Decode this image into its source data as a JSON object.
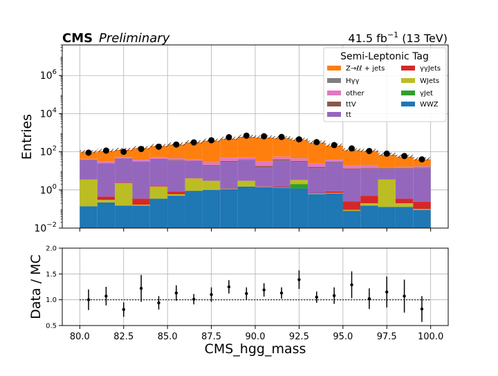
{
  "header": {
    "experiment": "CMS",
    "status": "Preliminary",
    "lumi_value": "41.5 fb",
    "lumi_exp": "−1",
    "lumi_energy": "(13 TeV)"
  },
  "colors": {
    "Zjets": "#ff7f0e",
    "Hgg": "#7f7f7f",
    "other": "#e377c2",
    "ttV": "#8c564b",
    "tt": "#9467bd",
    "ggJets": "#d62728",
    "WJets": "#bcbd22",
    "gJet": "#2ca02c",
    "WWZ": "#1f77b4"
  },
  "chart_data": [
    {
      "type": "bar",
      "stacked": true,
      "ylabel": "Entries",
      "yscale": "log",
      "ylim": [
        0.01,
        40000000
      ],
      "xlim": [
        79,
        101
      ],
      "grid": true,
      "legend": {
        "title": "Semi-Leptonic Tag",
        "placement": "top-right",
        "entries": [
          {
            "key": "Zjets",
            "label": "Z→ℓℓ + jets"
          },
          {
            "key": "ggJets",
            "label": "γγJets"
          },
          {
            "key": "Hgg",
            "label": "Hγγ"
          },
          {
            "key": "WJets",
            "label": "WJets"
          },
          {
            "key": "other",
            "label": "other"
          },
          {
            "key": "gJet",
            "label": "γJet"
          },
          {
            "key": "ttV",
            "label": "ttV"
          },
          {
            "key": "WWZ",
            "label": "WWZ"
          },
          {
            "key": "tt",
            "label": "tt"
          }
        ]
      },
      "bin_edges": [
        80,
        81,
        82,
        83,
        84,
        85,
        86,
        87,
        88,
        89,
        90,
        91,
        92,
        93,
        94,
        95,
        96,
        97,
        98,
        99,
        100
      ],
      "stack_order": [
        "WWZ",
        "gJet",
        "WJets",
        "ggJets",
        "tt",
        "ttV",
        "other",
        "Hgg",
        "Zjets"
      ],
      "stack_cumulative": [
        {
          "WWZ": 0.14,
          "gJet": 0.14,
          "WJets": 3.5,
          "ggJets": 3.6,
          "tt": 38,
          "ttV": 39,
          "other": 42,
          "Hgg": 42.5,
          "Zjets": 95
        },
        {
          "WWZ": 0.22,
          "gJet": 0.22,
          "WJets": 0.3,
          "ggJets": 0.45,
          "tt": 25,
          "ttV": 26,
          "other": 32,
          "Hgg": 32.5,
          "Zjets": 110
        },
        {
          "WWZ": 0.15,
          "gJet": 0.15,
          "WJets": 2.3,
          "ggJets": 2.45,
          "tt": 45,
          "ttV": 46,
          "other": 52,
          "Hgg": 52.5,
          "Zjets": 125
        },
        {
          "WWZ": 0.15,
          "gJet": 0.15,
          "WJets": 0.17,
          "ggJets": 0.35,
          "tt": 30,
          "ttV": 31,
          "other": 38,
          "Hgg": 38.5,
          "Zjets": 155
        },
        {
          "WWZ": 0.35,
          "gJet": 0.35,
          "WJets": 1.5,
          "ggJets": 1.6,
          "tt": 40,
          "ttV": 42,
          "other": 52,
          "Hgg": 52.5,
          "Zjets": 200
        },
        {
          "WWZ": 0.5,
          "gJet": 0.5,
          "WJets": 0.6,
          "ggJets": 0.8,
          "tt": 35,
          "ttV": 37,
          "other": 45,
          "Hgg": 45.5,
          "Zjets": 240
        },
        {
          "WWZ": 0.9,
          "gJet": 0.9,
          "WJets": 4.0,
          "ggJets": 4.1,
          "tt": 33,
          "ttV": 34,
          "other": 40,
          "Hgg": 40.5,
          "Zjets": 310
        },
        {
          "WWZ": 1.0,
          "gJet": 1.0,
          "WJets": 3.0,
          "ggJets": 3.05,
          "tt": 18,
          "ttV": 20,
          "other": 28,
          "Hgg": 28.5,
          "Zjets": 380
        },
        {
          "WWZ": 1.1,
          "gJet": 1.1,
          "WJets": 1.15,
          "ggJets": 1.2,
          "tt": 30,
          "ttV": 33,
          "other": 48,
          "Hgg": 48.5,
          "Zjets": 480
        },
        {
          "WWZ": 1.5,
          "gJet": 1.5,
          "WJets": 3.0,
          "ggJets": 3.05,
          "tt": 38,
          "ttV": 40,
          "other": 50,
          "Hgg": 50.5,
          "Zjets": 600
        },
        {
          "WWZ": 1.4,
          "gJet": 1.4,
          "WJets": 1.45,
          "ggJets": 1.5,
          "tt": 15,
          "ttV": 18,
          "other": 32,
          "Hgg": 32.5,
          "Zjets": 560
        },
        {
          "WWZ": 1.3,
          "gJet": 1.3,
          "WJets": 1.35,
          "ggJets": 1.5,
          "tt": 35,
          "ttV": 40,
          "other": 55,
          "Hgg": 55.5,
          "Zjets": 520
        },
        {
          "WWZ": 1.2,
          "gJet": 2.0,
          "WJets": 3.3,
          "ggJets": 3.35,
          "tt": 30,
          "ttV": 33,
          "other": 45,
          "Hgg": 45.5,
          "Zjets": 420
        },
        {
          "WWZ": 0.6,
          "gJet": 0.6,
          "WJets": 0.65,
          "ggJets": 0.7,
          "tt": 14,
          "ttV": 16,
          "other": 25,
          "Hgg": 25.5,
          "Zjets": 300
        },
        {
          "WWZ": 0.65,
          "gJet": 0.65,
          "WJets": 0.7,
          "ggJets": 0.85,
          "tt": 28,
          "ttV": 30,
          "other": 38,
          "Hgg": 38.5,
          "Zjets": 210
        },
        {
          "WWZ": 0.08,
          "gJet": 0.08,
          "WJets": 0.09,
          "ggJets": 0.25,
          "tt": 12,
          "ttV": 13,
          "other": 18,
          "Hgg": 18.5,
          "Zjets": 120
        },
        {
          "WWZ": 0.15,
          "gJet": 0.15,
          "WJets": 0.2,
          "ggJets": 0.5,
          "tt": 13,
          "ttV": 14,
          "other": 20,
          "Hgg": 20.5,
          "Zjets": 110
        },
        {
          "WWZ": 0.13,
          "gJet": 0.13,
          "WJets": 3.5,
          "ggJets": 3.55,
          "tt": 13,
          "ttV": 14,
          "other": 15,
          "Hgg": 15.5,
          "Zjets": 70
        },
        {
          "WWZ": 0.13,
          "gJet": 0.13,
          "WJets": 0.2,
          "ggJets": 0.35,
          "tt": 13,
          "ttV": 14,
          "other": 16,
          "Hgg": 16.5,
          "Zjets": 55
        },
        {
          "WWZ": 0.09,
          "gJet": 0.09,
          "WJets": 0.1,
          "ggJets": 0.24,
          "tt": 14,
          "ttV": 15,
          "other": 17,
          "Hgg": 17.5,
          "Zjets": 40
        }
      ],
      "data_points": {
        "x": [
          80.5,
          81.5,
          82.5,
          83.5,
          84.5,
          85.5,
          86.5,
          87.5,
          88.5,
          89.5,
          90.5,
          91.5,
          92.5,
          93.5,
          94.5,
          95.5,
          96.5,
          97.5,
          98.5,
          99.5
        ],
        "y": [
          90,
          115,
          100,
          140,
          185,
          240,
          310,
          400,
          580,
          700,
          650,
          600,
          450,
          320,
          225,
          150,
          110,
          80,
          60,
          40
        ]
      }
    },
    {
      "type": "scatter",
      "ylabel": "Data / MC",
      "xlabel": "CMS_hgg_mass",
      "xlim": [
        79,
        101
      ],
      "ylim": [
        0.5,
        2.0
      ],
      "xticks": [
        80.0,
        82.5,
        85.0,
        87.5,
        90.0,
        92.5,
        95.0,
        97.5,
        100.0
      ],
      "yticks": [
        0.5,
        1.0,
        1.5,
        2.0
      ],
      "reference_line": 1.0,
      "x": [
        80.5,
        81.5,
        82.5,
        83.5,
        84.5,
        85.5,
        86.5,
        87.5,
        88.5,
        89.5,
        90.5,
        91.5,
        92.5,
        93.5,
        94.5,
        95.5,
        96.5,
        97.5,
        98.5,
        99.5
      ],
      "y": [
        1.0,
        1.07,
        0.81,
        1.22,
        0.94,
        1.13,
        1.01,
        1.1,
        1.25,
        1.12,
        1.19,
        1.13,
        1.39,
        1.05,
        1.08,
        1.29,
        1.02,
        1.15,
        1.07,
        0.82
      ],
      "yerr": [
        0.2,
        0.18,
        0.14,
        0.26,
        0.13,
        0.15,
        0.1,
        0.14,
        0.13,
        0.12,
        0.13,
        0.11,
        0.18,
        0.11,
        0.16,
        0.26,
        0.2,
        0.3,
        0.32,
        0.25
      ]
    }
  ]
}
